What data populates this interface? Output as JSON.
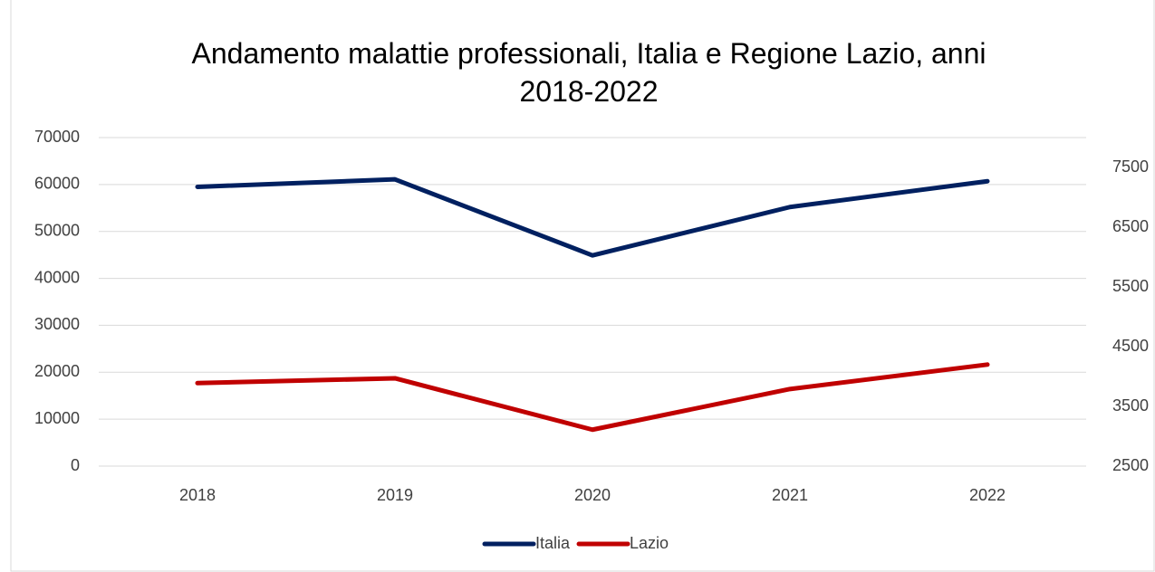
{
  "chart_data": {
    "type": "line",
    "title": "Andamento malattie professionali, Italia e Regione Lazio, anni 2018-2022",
    "categories": [
      "2018",
      "2019",
      "2020",
      "2021",
      "2022"
    ],
    "series": [
      {
        "name": "Italia",
        "color": "#002060",
        "values": [
          59500,
          61100,
          44900,
          55200,
          60700
        ]
      },
      {
        "name": "Lazio",
        "color": "#c00000",
        "axis": "y2",
        "values": [
          3890,
          3970,
          3110,
          3790,
          4200
        ]
      }
    ],
    "ylim": [
      0,
      70000
    ],
    "yticks": [
      0,
      10000,
      20000,
      30000,
      40000,
      50000,
      60000,
      70000
    ],
    "y2lim": [
      2500,
      8000
    ],
    "y2ticks": [
      2500,
      3500,
      4500,
      5500,
      6500,
      7500
    ],
    "grid": true,
    "legend": "bottom"
  }
}
